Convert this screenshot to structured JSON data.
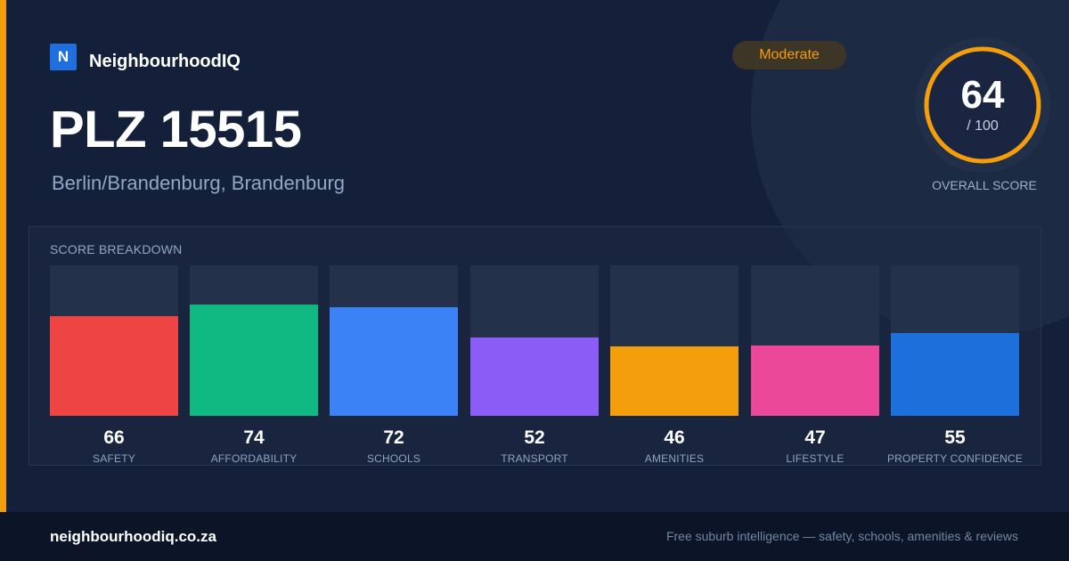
{
  "brand": {
    "logo_letter": "N",
    "name": "NeighbourhoodIQ",
    "logo_color": "#1f6fe0"
  },
  "rating": {
    "label": "Moderate",
    "color": "#f59e0b"
  },
  "title": "PLZ 15515",
  "location": "Berlin/Brandenburg, Brandenburg",
  "overall": {
    "score": 64,
    "max_label": "/ 100",
    "label": "OVERALL SCORE",
    "ring_color": "#f59e0b"
  },
  "breakdown": {
    "title": "SCORE BREAKDOWN",
    "items": [
      {
        "label": "SAFETY",
        "value": 66,
        "color": "#ef4444"
      },
      {
        "label": "AFFORDABILITY",
        "value": 74,
        "color": "#10b981"
      },
      {
        "label": "SCHOOLS",
        "value": 72,
        "color": "#3b82f6"
      },
      {
        "label": "TRANSPORT",
        "value": 52,
        "color": "#8b5cf6"
      },
      {
        "label": "AMENITIES",
        "value": 46,
        "color": "#f59e0b"
      },
      {
        "label": "LIFESTYLE",
        "value": 47,
        "color": "#ec4899"
      },
      {
        "label": "PROPERTY CONFIDENCE",
        "value": 55,
        "color": "#1d6fdb"
      }
    ]
  },
  "footer": {
    "url": "neighbourhoodiq.co.za",
    "tagline": "Free suburb intelligence — safety, schools, amenities & reviews"
  }
}
